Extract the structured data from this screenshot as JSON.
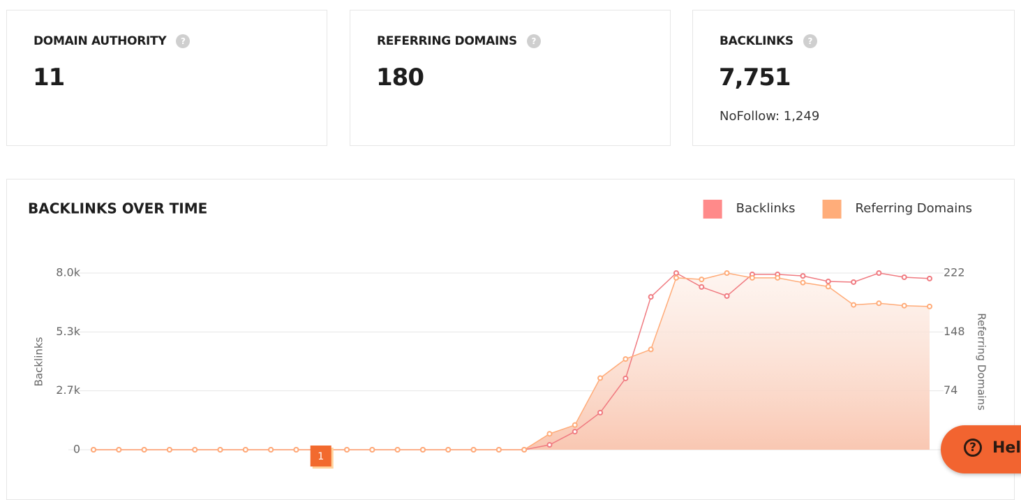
{
  "cards": [
    {
      "title": "DOMAIN AUTHORITY",
      "value": "11"
    },
    {
      "title": "REFERRING DOMAINS",
      "value": "180"
    },
    {
      "title": "BACKLINKS",
      "value": "7,751",
      "note": "NoFollow: 1,249"
    }
  ],
  "help": "Help",
  "chart_data": {
    "type": "line",
    "title": "BACKLINKS OVER TIME",
    "y_label": "Backlinks",
    "y2_label": "Referring Domains",
    "ylim": [
      0,
      8000
    ],
    "yticks": [
      0,
      {
        "value": 2667,
        "label": "2.7k"
      },
      {
        "value": 5333,
        "label": "5.3k"
      },
      {
        "value": 8000,
        "label": "8.0k"
      }
    ],
    "y2lim": [
      0,
      222
    ],
    "y2ticks": [
      74,
      148,
      222
    ],
    "grid": true,
    "legend": "top-right",
    "series": [
      {
        "name": "Backlinks",
        "color": "#f07a80",
        "legend_color": "#ff8a8a",
        "values": [
          0,
          0,
          0,
          0,
          0,
          0,
          0,
          0,
          0,
          0,
          0,
          0,
          0,
          0,
          0,
          0,
          0,
          0,
          220,
          820,
          1680,
          3230,
          6920,
          8000,
          7370,
          6960,
          7940,
          7940,
          7870,
          7620,
          7590,
          8000,
          7810,
          7751
        ]
      },
      {
        "name": "Referring Domains",
        "color": "#ffab78",
        "legend_color": "#ffad7a",
        "axis": "y2",
        "fill": true,
        "values": [
          0,
          0,
          0,
          0,
          0,
          0,
          0,
          0,
          0,
          0,
          0,
          0,
          0,
          0,
          0,
          0,
          0,
          0,
          20,
          31,
          90,
          114,
          126,
          216,
          214,
          222,
          216,
          216,
          210,
          205,
          182,
          184,
          181,
          180
        ]
      }
    ],
    "annotations": [
      {
        "at": 9,
        "text": "1"
      }
    ]
  }
}
